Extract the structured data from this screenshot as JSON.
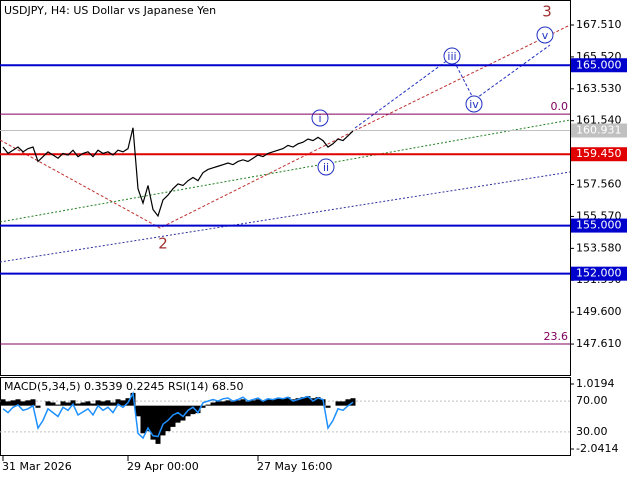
{
  "chart_data": {
    "type": "candlestick",
    "title": "USDJPY, H4:  US Dollar vs Japanese Yen",
    "categories": [
      "31 Mar 2026",
      null,
      null,
      null,
      null,
      null,
      null,
      null,
      null,
      null,
      null,
      null,
      null,
      null,
      null,
      null,
      null,
      null,
      null,
      null,
      null,
      null,
      null,
      null,
      null,
      "29 Apr 00:00",
      null,
      null,
      null,
      null,
      null,
      null,
      null,
      null,
      null,
      null,
      null,
      null,
      null,
      null,
      null,
      null,
      null,
      null,
      null,
      null,
      null,
      null,
      null,
      null,
      null,
      "27 May 16:00",
      null,
      null,
      null,
      null,
      null,
      null,
      null,
      null,
      null,
      null,
      null,
      null,
      null,
      null,
      null,
      null,
      null,
      null,
      null
    ],
    "values": [
      159.9,
      159.5,
      159.7,
      159.9,
      159.6,
      159.8,
      159.9,
      159.0,
      159.3,
      159.6,
      159.4,
      159.2,
      159.5,
      159.4,
      159.7,
      159.3,
      159.5,
      159.6,
      159.3,
      159.7,
      159.5,
      159.6,
      159.4,
      159.7,
      159.6,
      159.8,
      161.1,
      157.3,
      156.4,
      157.5,
      156.0,
      155.6,
      156.6,
      156.9,
      157.3,
      157.6,
      157.5,
      157.8,
      158.0,
      157.8,
      158.3,
      158.5,
      158.6,
      158.7,
      158.8,
      158.9,
      158.8,
      159.0,
      159.1,
      159.0,
      159.2,
      159.4,
      159.3,
      159.5,
      159.6,
      159.7,
      159.8,
      160.0,
      159.9,
      160.1,
      160.2,
      160.4,
      160.3,
      160.5,
      160.3,
      159.9,
      160.1,
      160.4,
      160.3,
      160.6,
      160.9
    ],
    "color": "#000000",
    "ylim": [
      145.68,
      169.07
    ],
    "yticks": [
      {
        "value": 167.51,
        "label": "167.510"
      },
      {
        "value": 165.52,
        "label": "165.520"
      },
      {
        "value": 163.53,
        "label": "163.530"
      },
      {
        "value": 161.54,
        "label": "161.540"
      },
      {
        "value": 157.56,
        "label": "157.560"
      },
      {
        "value": 155.57,
        "label": "155.570"
      },
      {
        "value": 153.58,
        "label": "153.580"
      },
      {
        "value": 151.59,
        "label": "151.590"
      },
      {
        "value": 149.6,
        "label": "149.600"
      },
      {
        "value": 147.61,
        "label": "147.610"
      }
    ],
    "levels": [
      {
        "value": 165,
        "label": "165.000",
        "color": "#0000cc"
      },
      {
        "value": 159.45,
        "label": "159.450",
        "color": "#e00000"
      },
      {
        "value": 155,
        "label": "155.000",
        "color": "#0000cc"
      },
      {
        "value": 152,
        "label": "152.000",
        "color": "#0000cc"
      }
    ],
    "current_price": {
      "value": 160.931,
      "label": "160.931"
    },
    "fib_levels": [
      {
        "name": "0.0",
        "value": 161.95
      },
      {
        "name": "23.6",
        "value": 147.61
      }
    ],
    "annotations": [
      "3",
      "2",
      "i",
      "ii",
      "iii",
      "iv",
      "v"
    ],
    "indicator": {
      "label": "MACD(5,34,5) 0.3539 0.2245 RSI(14) 68.50",
      "macd": {
        "values": [
          0.3,
          0.2,
          0.25,
          0.3,
          0.2,
          0.25,
          0.3,
          -0.1,
          0.0,
          0.2,
          0.15,
          0.05,
          0.2,
          0.15,
          0.25,
          0.1,
          0.15,
          0.2,
          0.1,
          0.25,
          0.2,
          0.25,
          0.15,
          0.3,
          0.25,
          0.35,
          0.6,
          -0.5,
          -1.3,
          -1.2,
          -1.6,
          -1.8,
          -1.4,
          -1.2,
          -1.0,
          -0.8,
          -0.7,
          -0.5,
          -0.4,
          -0.35,
          -0.1,
          0.05,
          0.15,
          0.2,
          0.2,
          0.25,
          0.2,
          0.25,
          0.3,
          0.2,
          0.25,
          0.3,
          0.25,
          0.3,
          0.3,
          0.35,
          0.35,
          0.4,
          0.3,
          0.35,
          0.4,
          0.45,
          0.35,
          0.4,
          0.3,
          -0.1,
          0.0,
          0.2,
          0.2,
          0.3,
          0.35
        ],
        "color": "#000000",
        "ylim": [
          -2.323,
          1.302
        ],
        "yticks": [
          1.0194,
          -2.0414
        ]
      },
      "rsi": {
        "values": [
          60,
          55,
          62,
          65,
          58,
          60,
          64,
          35,
          45,
          60,
          55,
          50,
          62,
          58,
          66,
          52,
          56,
          60,
          52,
          64,
          58,
          62,
          55,
          66,
          62,
          68,
          80,
          28,
          22,
          35,
          25,
          24,
          40,
          45,
          52,
          55,
          50,
          58,
          62,
          55,
          68,
          70,
          72,
          70,
          73,
          74,
          70,
          72,
          75,
          70,
          72,
          74,
          70,
          73,
          72,
          74,
          73,
          75,
          70,
          72,
          74,
          76,
          70,
          74,
          72,
          35,
          45,
          60,
          58,
          64,
          68.5
        ],
        "color": "#1e90ff",
        "ylim": [
          0,
          100
        ],
        "yticks": [
          {
            "value": 70,
            "label": "70.00"
          },
          {
            "value": 30,
            "label": "30.00"
          }
        ]
      }
    }
  }
}
